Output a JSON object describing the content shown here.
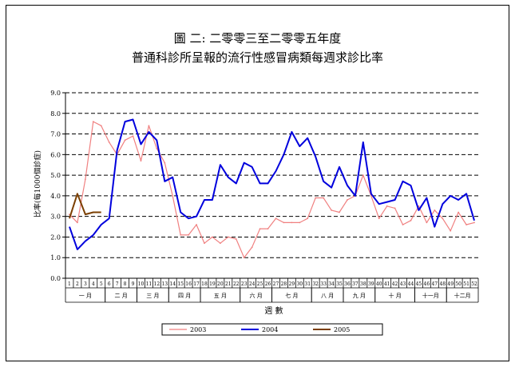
{
  "chart_data": {
    "type": "line",
    "title_line1": "圖 二: 二零零三至二零零五年度",
    "title_line2": "普通科診所呈報的流行性感冒病類每週求診比率",
    "xlabel": "週 數",
    "ylabel": "比率(每1000個診症)",
    "ylim": [
      0,
      9
    ],
    "ytick_labels": [
      "0.0",
      "1.0",
      "2.0",
      "3.0",
      "4.0",
      "5.0",
      "6.0",
      "7.0",
      "8.0",
      "9.0"
    ],
    "grid": "dashed horizontal",
    "legend_position": "bottom",
    "weeks": [
      "1",
      "2",
      "3",
      "4",
      "5",
      "6",
      "7",
      "8",
      "9",
      "10",
      "11",
      "12",
      "13",
      "14",
      "15",
      "16",
      "17",
      "18",
      "19",
      "20",
      "21",
      "22",
      "23",
      "24",
      "25",
      "26",
      "27",
      "28",
      "29",
      "30",
      "31",
      "32",
      "33",
      "34",
      "35",
      "36",
      "37",
      "38",
      "39",
      "40",
      "41",
      "42",
      "43",
      "44",
      "45",
      "46",
      "47",
      "48",
      "49",
      "50",
      "51",
      "52"
    ],
    "months": [
      {
        "label": "一 月",
        "start": 1,
        "end": 5
      },
      {
        "label": "二 月",
        "start": 6,
        "end": 9
      },
      {
        "label": "三 月",
        "start": 10,
        "end": 13
      },
      {
        "label": "四 月",
        "start": 14,
        "end": 17
      },
      {
        "label": "五 月",
        "start": 18,
        "end": 22
      },
      {
        "label": "六 月",
        "start": 23,
        "end": 26
      },
      {
        "label": "七 月",
        "start": 27,
        "end": 31
      },
      {
        "label": "八 月",
        "start": 32,
        "end": 35
      },
      {
        "label": "九 月",
        "start": 36,
        "end": 39
      },
      {
        "label": "十 月",
        "start": 40,
        "end": 44
      },
      {
        "label": "十一月",
        "start": 45,
        "end": 48
      },
      {
        "label": "十二月",
        "start": 49,
        "end": 52
      }
    ],
    "series": [
      {
        "name": "2003",
        "color": "#f08080",
        "width": 1.2,
        "values": [
          3.1,
          2.7,
          4.8,
          7.6,
          7.4,
          6.6,
          6.0,
          6.7,
          6.9,
          5.7,
          7.4,
          6.3,
          5.6,
          4.0,
          2.1,
          2.1,
          2.6,
          1.7,
          2.0,
          1.7,
          2.0,
          1.9,
          1.0,
          1.5,
          2.4,
          2.4,
          2.9,
          2.7,
          2.7,
          2.7,
          2.9,
          3.9,
          3.9,
          3.3,
          3.2,
          3.8,
          4.0,
          5.0,
          4.0,
          2.9,
          3.5,
          3.4,
          2.6,
          2.8,
          3.5,
          2.7,
          3.3,
          2.9,
          2.3,
          3.2,
          2.6,
          2.7
        ]
      },
      {
        "name": "2004",
        "color": "#0000dd",
        "width": 2,
        "values": [
          2.5,
          1.4,
          1.8,
          2.1,
          2.6,
          2.9,
          6.2,
          7.6,
          7.7,
          6.5,
          7.1,
          6.7,
          4.7,
          4.9,
          3.2,
          2.9,
          3.0,
          3.8,
          3.8,
          5.5,
          4.9,
          4.6,
          5.6,
          5.4,
          4.6,
          4.6,
          5.2,
          6.0,
          7.1,
          6.4,
          6.8,
          5.9,
          4.7,
          4.4,
          5.4,
          4.5,
          4.0,
          6.6,
          4.1,
          3.6,
          3.7,
          3.8,
          4.7,
          4.5,
          3.3,
          3.9,
          2.5,
          3.6,
          4.0,
          3.8,
          4.1,
          2.8
        ]
      },
      {
        "name": "2005",
        "color": "#7b3f00",
        "width": 2,
        "values": [
          2.9,
          4.1,
          3.1,
          3.2,
          3.2
        ]
      }
    ]
  }
}
